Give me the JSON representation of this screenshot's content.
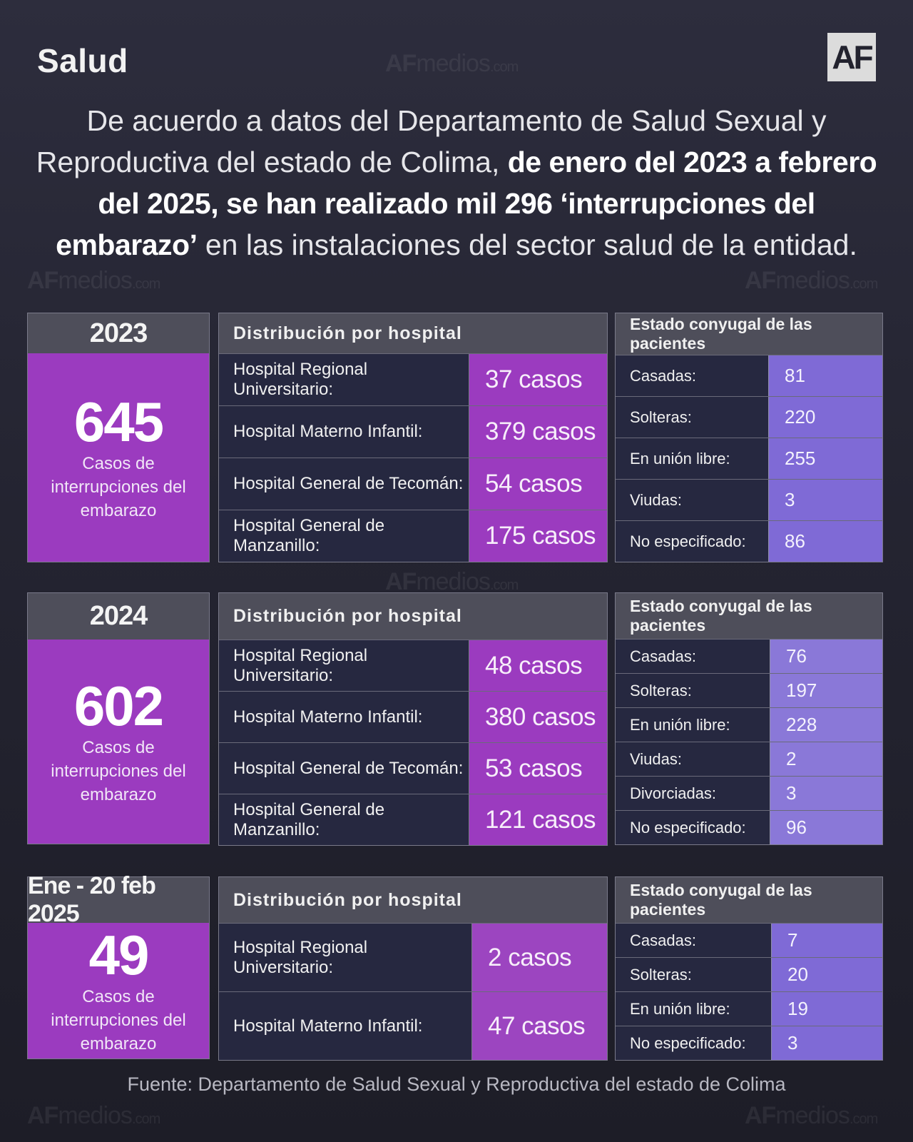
{
  "section": "Salud",
  "logo_text": "AF",
  "watermark": {
    "brand": "AF",
    "mid": "medios",
    "suffix": ".com"
  },
  "headline": {
    "normal_1": "De acuerdo a datos del Departamento de Salud Sexual y Reproductiva del estado de Colima, ",
    "bold": "de enero del 2023 a febrero del 2025, se han realizado mil 296 ‘interrupciones del embarazo’",
    "normal_2": " en las instalaciones del sector salud de la entidad."
  },
  "blocks": [
    {
      "period": "2023",
      "total": "645",
      "total_caption": "Casos de interrupciones del embarazo",
      "hospital_header": "Distribución por hospital",
      "hospitals": [
        {
          "name": "Hospital Regional Universitario:",
          "cases": "37 casos"
        },
        {
          "name": "Hospital Materno Infantil:",
          "cases": "379 casos"
        },
        {
          "name": "Hospital General de Tecomán:",
          "cases": "54 casos"
        },
        {
          "name": "Hospital General de Manzanillo:",
          "cases": "175 casos"
        }
      ],
      "civil_header": "Estado conyugal de las pacientes",
      "civil": [
        {
          "name": "Casadas:",
          "value": "81"
        },
        {
          "name": "Solteras:",
          "value": "220"
        },
        {
          "name": "En unión libre:",
          "value": "255"
        },
        {
          "name": "Viudas:",
          "value": "3"
        },
        {
          "name": "No especificado:",
          "value": "86"
        }
      ]
    },
    {
      "period": "2024",
      "total": "602",
      "total_caption": "Casos de interrupciones del embarazo",
      "hospital_header": "Distribución por hospital",
      "hospitals": [
        {
          "name": "Hospital Regional Universitario:",
          "cases": "48 casos"
        },
        {
          "name": "Hospital Materno Infantil:",
          "cases": "380 casos"
        },
        {
          "name": "Hospital General de Tecomán:",
          "cases": "53 casos"
        },
        {
          "name": "Hospital General de Manzanillo:",
          "cases": "121 casos"
        }
      ],
      "civil_header": "Estado conyugal de las pacientes",
      "civil": [
        {
          "name": "Casadas:",
          "value": "76"
        },
        {
          "name": "Solteras:",
          "value": "197"
        },
        {
          "name": "En unión libre:",
          "value": "228"
        },
        {
          "name": "Viudas:",
          "value": "2"
        },
        {
          "name": "Divorciadas:",
          "value": "3"
        },
        {
          "name": "No especificado:",
          "value": "96"
        }
      ]
    },
    {
      "period": "Ene - 20 feb 2025",
      "total": "49",
      "total_caption": "Casos de interrupciones del embarazo",
      "hospital_header": "Distribución por hospital",
      "hospitals": [
        {
          "name": "Hospital Regional Universitario:",
          "cases": "2 casos"
        },
        {
          "name": "Hospital Materno Infantil:",
          "cases": "47 casos"
        }
      ],
      "civil_header": "Estado conyugal de las pacientes",
      "civil": [
        {
          "name": "Casadas:",
          "value": "7"
        },
        {
          "name": "Solteras:",
          "value": "20"
        },
        {
          "name": "En unión libre:",
          "value": "19"
        },
        {
          "name": "No especificado:",
          "value": "3"
        }
      ]
    }
  ],
  "source": "Fuente: Departamento de Salud Sexual y Reproductiva del estado de Colima"
}
